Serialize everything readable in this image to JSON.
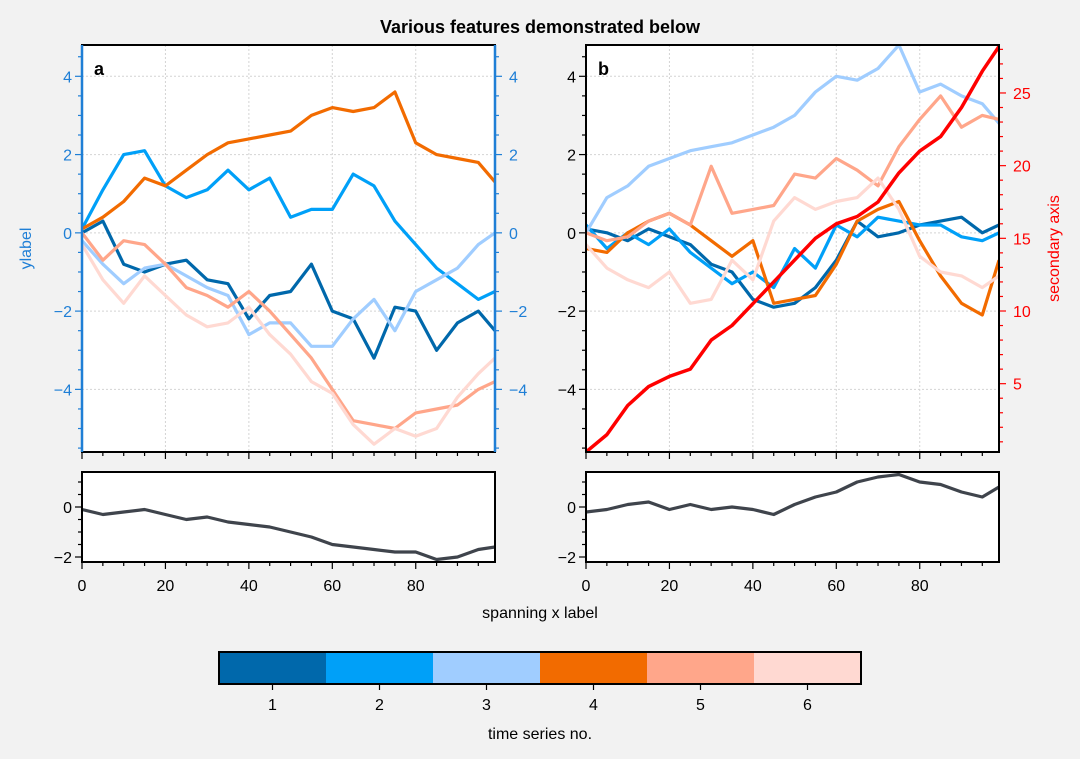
{
  "figure": {
    "title": "Various features demonstrated below",
    "shared_xlabel": "spanning x label",
    "colors": {
      "background": "#f2f2f2",
      "panel_a_axis": "#1f7fd6",
      "secondary_axis": "#ff0000",
      "bottom_series": "#3f444c"
    }
  },
  "chart_data": [
    {
      "panel": "a",
      "type": "line",
      "ylabel": "ylabel",
      "xlim": [
        0,
        99
      ],
      "ylim": [
        -5.6,
        4.8
      ],
      "y_ticks": [
        -4,
        -2,
        0,
        2,
        4
      ],
      "y_tick_labels": [
        "−4",
        "−2",
        "0",
        "2",
        "4"
      ],
      "duplicate_right_axis": true,
      "grid": true,
      "series": [
        {
          "color": "#0068ab",
          "x": [
            0,
            5,
            10,
            15,
            20,
            25,
            30,
            35,
            40,
            45,
            50,
            55,
            60,
            65,
            70,
            75,
            80,
            85,
            90,
            95,
            99
          ],
          "y": [
            0.0,
            0.3,
            -0.8,
            -1.0,
            -0.8,
            -0.7,
            -1.2,
            -1.3,
            -2.2,
            -1.6,
            -1.5,
            -0.8,
            -2.0,
            -2.2,
            -3.2,
            -1.9,
            -2.0,
            -3.0,
            -2.3,
            -2.0,
            -2.5
          ]
        },
        {
          "color": "#00a0f8",
          "x": [
            0,
            5,
            10,
            15,
            20,
            25,
            30,
            35,
            40,
            45,
            50,
            55,
            60,
            65,
            70,
            75,
            80,
            85,
            90,
            95,
            99
          ],
          "y": [
            0.1,
            1.1,
            2.0,
            2.1,
            1.2,
            0.9,
            1.1,
            1.6,
            1.1,
            1.4,
            0.4,
            0.6,
            0.6,
            1.5,
            1.2,
            0.3,
            -0.3,
            -0.9,
            -1.3,
            -1.7,
            -1.5
          ]
        },
        {
          "color": "#a0cdff",
          "x": [
            0,
            5,
            10,
            15,
            20,
            25,
            30,
            35,
            40,
            45,
            50,
            55,
            60,
            65,
            70,
            75,
            80,
            85,
            90,
            95,
            99
          ],
          "y": [
            -0.2,
            -0.8,
            -1.3,
            -0.9,
            -0.8,
            -1.1,
            -1.4,
            -1.6,
            -2.6,
            -2.3,
            -2.3,
            -2.9,
            -2.9,
            -2.2,
            -1.7,
            -2.5,
            -1.5,
            -1.2,
            -0.9,
            -0.3,
            0.0
          ]
        },
        {
          "color": "#f26b00",
          "x": [
            0,
            5,
            10,
            15,
            20,
            25,
            30,
            35,
            40,
            45,
            50,
            55,
            60,
            65,
            70,
            75,
            80,
            85,
            90,
            95,
            99
          ],
          "y": [
            0.1,
            0.4,
            0.8,
            1.4,
            1.2,
            1.6,
            2.0,
            2.3,
            2.4,
            2.5,
            2.6,
            3.0,
            3.2,
            3.1,
            3.2,
            3.6,
            2.3,
            2.0,
            1.9,
            1.8,
            1.3
          ]
        },
        {
          "color": "#ffa68a",
          "x": [
            0,
            5,
            10,
            15,
            20,
            25,
            30,
            35,
            40,
            45,
            50,
            55,
            60,
            65,
            70,
            75,
            80,
            85,
            90,
            95,
            99
          ],
          "y": [
            0.0,
            -0.7,
            -0.2,
            -0.3,
            -0.8,
            -1.4,
            -1.6,
            -1.9,
            -1.5,
            -2.0,
            -2.6,
            -3.2,
            -4.0,
            -4.8,
            -4.9,
            -5.0,
            -4.6,
            -4.5,
            -4.4,
            -4.0,
            -3.8
          ]
        },
        {
          "color": "#ffd9d2",
          "x": [
            0,
            5,
            10,
            15,
            20,
            25,
            30,
            35,
            40,
            45,
            50,
            55,
            60,
            65,
            70,
            75,
            80,
            85,
            90,
            95,
            99
          ],
          "y": [
            -0.3,
            -1.2,
            -1.8,
            -1.1,
            -1.6,
            -2.1,
            -2.4,
            -2.3,
            -1.9,
            -2.6,
            -3.1,
            -3.8,
            -4.1,
            -4.9,
            -5.4,
            -5.0,
            -5.2,
            -5.0,
            -4.2,
            -3.6,
            -3.2
          ]
        }
      ]
    },
    {
      "panel": "b",
      "type": "line",
      "xlim": [
        0,
        99
      ],
      "ylim": [
        -5.6,
        4.8
      ],
      "y_ticks": [
        -4,
        -2,
        0,
        2,
        4
      ],
      "y_tick_labels": [
        "−4",
        "−2",
        "0",
        "2",
        "4"
      ],
      "grid": true,
      "series": [
        {
          "color": "#0068ab",
          "x": [
            0,
            5,
            10,
            15,
            20,
            25,
            30,
            35,
            40,
            45,
            50,
            55,
            60,
            65,
            70,
            75,
            80,
            85,
            90,
            95,
            99
          ],
          "y": [
            0.1,
            0.0,
            -0.2,
            0.1,
            -0.1,
            -0.3,
            -0.8,
            -1.0,
            -1.7,
            -1.9,
            -1.8,
            -1.4,
            -0.7,
            0.3,
            -0.1,
            0.0,
            0.2,
            0.3,
            0.4,
            0.0,
            0.2
          ]
        },
        {
          "color": "#00a0f8",
          "x": [
            0,
            5,
            10,
            15,
            20,
            25,
            30,
            35,
            40,
            45,
            50,
            55,
            60,
            65,
            70,
            75,
            80,
            85,
            90,
            95,
            99
          ],
          "y": [
            0.2,
            -0.4,
            0.0,
            -0.3,
            0.1,
            -0.5,
            -0.9,
            -1.3,
            -1.0,
            -1.4,
            -0.4,
            -0.9,
            0.2,
            -0.1,
            0.4,
            0.3,
            0.2,
            0.2,
            -0.1,
            -0.2,
            0.0
          ]
        },
        {
          "color": "#a0cdff",
          "x": [
            0,
            5,
            10,
            15,
            20,
            25,
            30,
            35,
            40,
            45,
            50,
            55,
            60,
            65,
            70,
            75,
            80,
            85,
            90,
            95,
            99
          ],
          "y": [
            0.0,
            0.9,
            1.2,
            1.7,
            1.9,
            2.1,
            2.2,
            2.3,
            2.5,
            2.7,
            3.0,
            3.6,
            4.0,
            3.9,
            4.2,
            4.8,
            3.6,
            3.8,
            3.5,
            3.3,
            2.8
          ]
        },
        {
          "color": "#f26b00",
          "x": [
            0,
            5,
            10,
            15,
            20,
            25,
            30,
            35,
            40,
            45,
            50,
            55,
            60,
            65,
            70,
            75,
            80,
            85,
            90,
            95,
            99
          ],
          "y": [
            -0.4,
            -0.5,
            0.0,
            0.3,
            0.5,
            0.2,
            -0.2,
            -0.6,
            -0.2,
            -1.8,
            -1.7,
            -1.6,
            -0.8,
            0.3,
            0.6,
            0.8,
            -0.2,
            -1.1,
            -1.8,
            -2.1,
            -0.7
          ]
        },
        {
          "color": "#ffa68a",
          "x": [
            0,
            5,
            10,
            15,
            20,
            25,
            30,
            35,
            40,
            45,
            50,
            55,
            60,
            65,
            70,
            75,
            80,
            85,
            90,
            95,
            99
          ],
          "y": [
            0.0,
            -0.2,
            -0.1,
            0.3,
            0.5,
            0.2,
            1.7,
            0.5,
            0.6,
            0.7,
            1.5,
            1.4,
            1.9,
            1.6,
            1.2,
            2.2,
            2.9,
            3.5,
            2.7,
            3.0,
            2.9
          ]
        },
        {
          "color": "#ffd9d2",
          "x": [
            0,
            5,
            10,
            15,
            20,
            25,
            30,
            35,
            40,
            45,
            50,
            55,
            60,
            65,
            70,
            75,
            80,
            85,
            90,
            95,
            99
          ],
          "y": [
            -0.3,
            -0.9,
            -1.2,
            -1.4,
            -1.0,
            -1.8,
            -1.7,
            -0.7,
            -1.2,
            0.3,
            0.9,
            0.6,
            0.8,
            0.9,
            1.4,
            0.6,
            -0.6,
            -1.0,
            -1.1,
            -1.4,
            -1.1
          ]
        }
      ],
      "secondary_axis": {
        "label": "secondary axis",
        "color": "#ff0000",
        "ylim": [
          0.3,
          28.3
        ],
        "ticks": [
          5,
          10,
          15,
          20,
          25
        ],
        "series": {
          "x": [
            0,
            5,
            10,
            15,
            20,
            25,
            30,
            35,
            40,
            45,
            50,
            55,
            60,
            65,
            70,
            75,
            80,
            85,
            90,
            95,
            99
          ],
          "y": [
            0.3,
            1.5,
            3.5,
            4.8,
            5.5,
            6.0,
            8.0,
            9.0,
            10.5,
            12.0,
            13.5,
            15.0,
            16.0,
            16.5,
            17.5,
            19.5,
            21.0,
            22.0,
            24.0,
            26.5,
            28.2
          ]
        }
      }
    },
    {
      "panel": "a-bottom",
      "type": "line",
      "xlim": [
        0,
        99
      ],
      "ylim": [
        -2.2,
        1.4
      ],
      "y_ticks": [
        -2,
        0
      ],
      "y_tick_labels": [
        "−2",
        "0"
      ],
      "x_ticks": [
        0,
        20,
        40,
        60,
        80
      ],
      "x_tick_labels": [
        "0",
        "20",
        "40",
        "60",
        "80"
      ],
      "series": [
        {
          "color": "#3f444c",
          "x": [
            0,
            5,
            10,
            15,
            20,
            25,
            30,
            35,
            40,
            45,
            50,
            55,
            60,
            65,
            70,
            75,
            80,
            85,
            90,
            95,
            99
          ],
          "y": [
            -0.1,
            -0.3,
            -0.2,
            -0.1,
            -0.3,
            -0.5,
            -0.4,
            -0.6,
            -0.7,
            -0.8,
            -1.0,
            -1.2,
            -1.5,
            -1.6,
            -1.7,
            -1.8,
            -1.8,
            -2.1,
            -2.0,
            -1.7,
            -1.6
          ]
        }
      ]
    },
    {
      "panel": "b-bottom",
      "type": "line",
      "xlim": [
        0,
        99
      ],
      "ylim": [
        -2.2,
        1.4
      ],
      "y_ticks": [
        -2,
        0
      ],
      "y_tick_labels": [
        "−2",
        "0"
      ],
      "x_ticks": [
        0,
        20,
        40,
        60,
        80
      ],
      "x_tick_labels": [
        "0",
        "20",
        "40",
        "60",
        "80"
      ],
      "series": [
        {
          "color": "#3f444c",
          "x": [
            0,
            5,
            10,
            15,
            20,
            25,
            30,
            35,
            40,
            45,
            50,
            55,
            60,
            65,
            70,
            75,
            80,
            85,
            90,
            95,
            99
          ],
          "y": [
            -0.2,
            -0.1,
            0.1,
            0.2,
            -0.1,
            0.1,
            -0.1,
            0.0,
            -0.1,
            -0.3,
            0.1,
            0.4,
            0.6,
            1.0,
            1.2,
            1.3,
            1.0,
            0.9,
            0.6,
            0.4,
            0.8
          ]
        }
      ]
    }
  ],
  "colorbar": {
    "label": "time series no.",
    "colors": [
      "#0068ab",
      "#00a0f8",
      "#a0cdff",
      "#f26b00",
      "#ffa68a",
      "#ffd9d2"
    ],
    "tick_labels": [
      "1",
      "2",
      "3",
      "4",
      "5",
      "6"
    ]
  }
}
